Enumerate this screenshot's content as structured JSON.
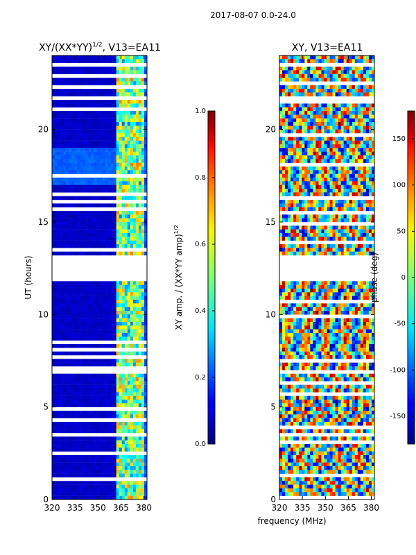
{
  "figure": {
    "suptitle": "2017-08-07 0.0-24.0",
    "xlabel": "frequency (MHz)"
  },
  "chart_data": [
    {
      "type": "heatmap",
      "title_main": "XY/(XX*YY)",
      "title_sup": "1/2",
      "title_rest": ", V13=EA11",
      "xlabel": "",
      "ylabel": "UT (hours)",
      "xlim": [
        320,
        382
      ],
      "ylim": [
        0,
        24
      ],
      "xticks": [
        "320",
        "335",
        "350",
        "365",
        "380"
      ],
      "xtick_values": [
        320,
        335,
        350,
        365,
        380
      ],
      "yticks": [
        "0",
        "5",
        "10",
        "15",
        "20"
      ],
      "ytick_values": [
        0,
        5,
        10,
        15,
        20
      ],
      "colorbar": {
        "label_main": "XY amp. / (XX*YY amp)",
        "label_sup": "1/2",
        "range": [
          0.0,
          1.0
        ],
        "ticks": [
          "0.0",
          "0.2",
          "0.4",
          "0.6",
          "0.8",
          "1.0"
        ],
        "tick_values": [
          0.0,
          0.2,
          0.4,
          0.6,
          0.8,
          1.0
        ]
      },
      "blank_time_ranges_hours": [
        [
          11.9,
          13.1
        ],
        [
          3.4,
          3.6
        ],
        [
          6.7,
          6.9
        ],
        [
          23.4,
          23.6
        ]
      ],
      "active_band_mhz": [
        362,
        380
      ],
      "typical_values": {
        "below_362_mhz": 0.05,
        "362_to_380_mhz": 0.35,
        "above_380_mhz": 0.15
      }
    },
    {
      "type": "heatmap",
      "title": "XY, V13=EA11",
      "xlabel": "",
      "ylabel": "",
      "xlim": [
        320,
        382
      ],
      "ylim": [
        0,
        24
      ],
      "xticks": [
        "320",
        "335",
        "350",
        "365",
        "380"
      ],
      "xtick_values": [
        320,
        335,
        350,
        365,
        380
      ],
      "yticks": [
        "0",
        "5",
        "10",
        "15",
        "20"
      ],
      "ytick_values": [
        0,
        5,
        10,
        15,
        20
      ],
      "colorbar": {
        "label": "phase (deg)",
        "range": [
          -180,
          180
        ],
        "ticks": [
          "-150",
          "-100",
          "-50",
          "0",
          "50",
          "100",
          "150"
        ],
        "tick_values": [
          -150,
          -100,
          -50,
          0,
          50,
          100,
          150
        ]
      },
      "blank_time_ranges_hours": [
        [
          11.9,
          13.1
        ],
        [
          3.4,
          3.6
        ],
        [
          6.7,
          6.9
        ],
        [
          23.4,
          23.6
        ]
      ]
    }
  ]
}
